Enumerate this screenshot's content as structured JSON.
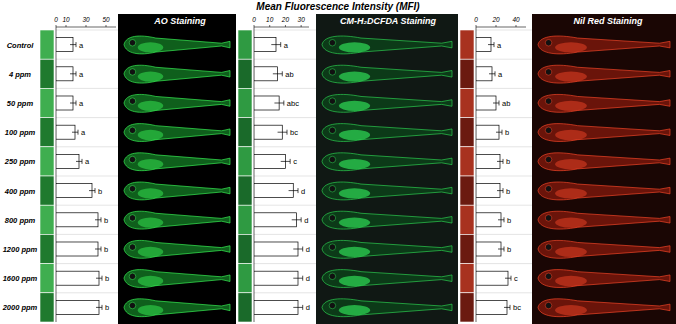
{
  "title": "Mean Fluorescence Intensity (MFI)",
  "chart_data": [
    {
      "type": "bar",
      "orientation": "horizontal",
      "title": "AO Staining",
      "categories": [
        "Control",
        "4 ppm",
        "50 ppm",
        "100 ppm",
        "250 ppm",
        "400 ppm",
        "800 ppm",
        "1200 ppm",
        "1600 ppm",
        "2000 ppm"
      ],
      "values": [
        17,
        17,
        17,
        19,
        23,
        36,
        42,
        42,
        43,
        43
      ],
      "errors": [
        3,
        3,
        3,
        3,
        3,
        3,
        3,
        3,
        3,
        3
      ],
      "significance": [
        "a",
        "a",
        "a",
        "a",
        "a",
        "b",
        "b",
        "b",
        "b",
        "b"
      ],
      "xlim": [
        0,
        60
      ],
      "xticks": [
        0,
        10,
        30,
        50
      ],
      "color": "#ffffff"
    },
    {
      "type": "bar",
      "orientation": "horizontal",
      "title": "CM-H₂DCFDA Staining",
      "values": [
        14,
        15,
        16,
        18,
        20,
        25,
        27,
        28,
        28,
        28
      ],
      "errors": [
        3,
        3,
        3,
        3,
        3,
        3,
        3,
        3,
        3,
        3
      ],
      "significance": [
        "a",
        "ab",
        "abc",
        "bc",
        "c",
        "d",
        "d",
        "d",
        "d",
        "d"
      ],
      "xlim": [
        0,
        35
      ],
      "xticks": [
        0,
        10,
        20,
        30
      ],
      "color": "#ffffff"
    },
    {
      "type": "bar",
      "orientation": "horizontal",
      "title": "Nil Red Staining",
      "values": [
        15,
        16,
        20,
        23,
        24,
        24,
        25,
        25,
        32,
        31
      ],
      "errors": [
        3,
        3,
        3,
        3,
        3,
        3,
        3,
        3,
        3,
        3
      ],
      "significance": [
        "a",
        "a",
        "ab",
        "b",
        "b",
        "b",
        "b",
        "b",
        "c",
        "bc"
      ],
      "xlim": [
        0,
        50
      ],
      "xticks": [
        0,
        20,
        40
      ],
      "color": "#ffffff"
    }
  ]
}
